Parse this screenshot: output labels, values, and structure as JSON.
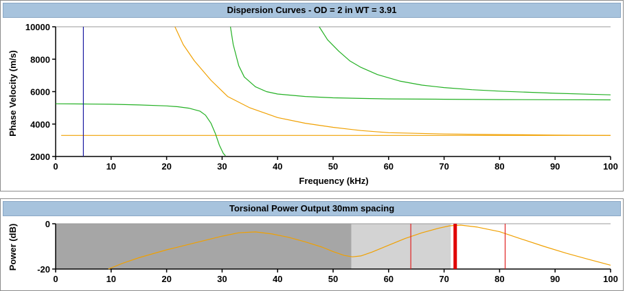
{
  "chart_data": [
    {
      "type": "line",
      "title": "Dispersion Curves - OD = 2 in WT = 3.91",
      "xlabel": "Frequency (kHz)",
      "ylabel": "Phase Velocity (m/s)",
      "xlim": [
        0,
        100
      ],
      "ylim": [
        2000,
        10000
      ],
      "xticks": [
        "0",
        "10",
        "20",
        "30",
        "40",
        "50",
        "60",
        "70",
        "80",
        "90",
        "100"
      ],
      "yticks": [
        "2000",
        "4000",
        "6000",
        "8000",
        "10000"
      ],
      "grid": "top-border-line",
      "colors": {
        "orange": "#f0a000",
        "green": "#22b022",
        "blue": "#1a1aa0"
      },
      "series": [
        {
          "color": "orange",
          "x": [
            1,
            100
          ],
          "y": [
            3300,
            3300
          ]
        },
        {
          "color": "orange",
          "x": [
            21.5,
            23,
            25,
            28,
            31,
            35,
            40,
            45,
            50,
            55,
            60,
            70,
            80,
            90,
            100
          ],
          "y": [
            10000,
            8900,
            7900,
            6700,
            5700,
            5000,
            4400,
            4050,
            3800,
            3600,
            3470,
            3390,
            3350,
            3320,
            3300
          ]
        },
        {
          "color": "green",
          "x": [
            0,
            5,
            10,
            15,
            20,
            22,
            24,
            26,
            27,
            28,
            28.8,
            29.5,
            30.2,
            30.6
          ],
          "y": [
            5250,
            5240,
            5220,
            5180,
            5120,
            5070,
            4980,
            4800,
            4550,
            4050,
            3400,
            2700,
            2200,
            2050
          ]
        },
        {
          "color": "green",
          "x": [
            31.5,
            32,
            33,
            34,
            36,
            38,
            40,
            45,
            50,
            55,
            60,
            70,
            80,
            90,
            100
          ],
          "y": [
            10000,
            8900,
            7600,
            6900,
            6300,
            6000,
            5850,
            5700,
            5620,
            5580,
            5550,
            5530,
            5510,
            5500,
            5490
          ]
        },
        {
          "color": "green",
          "x": [
            47.5,
            49,
            51,
            53,
            55,
            58,
            62,
            66,
            70,
            75,
            80,
            90,
            100
          ],
          "y": [
            10000,
            9200,
            8500,
            7900,
            7500,
            7050,
            6650,
            6400,
            6250,
            6120,
            6030,
            5900,
            5800
          ]
        },
        {
          "color": "blue",
          "x": [
            5,
            5
          ],
          "y": [
            2000,
            10000
          ]
        }
      ]
    },
    {
      "type": "line",
      "title": "Torsional Power Output   30mm spacing",
      "xlabel": "",
      "ylabel": "Power (dB)",
      "xlim": [
        0,
        100
      ],
      "ylim": [
        -20,
        0
      ],
      "xticks": [
        "0",
        "10",
        "20",
        "30",
        "40",
        "50",
        "60",
        "70",
        "80",
        "90",
        "100"
      ],
      "yticks": [
        "0",
        "-20"
      ],
      "regions": [
        {
          "from": 0,
          "to": 53.3,
          "color": "#a6a6a6"
        },
        {
          "from": 53.3,
          "to": 71.2,
          "color": "#d3d3d3"
        }
      ],
      "markers": [
        {
          "x": 64,
          "color": "#e02020",
          "width": "thin"
        },
        {
          "x": 72,
          "color": "#e00000",
          "width": "thick"
        },
        {
          "x": 81,
          "color": "#e02020",
          "width": "thin"
        }
      ],
      "series": [
        {
          "color": "orange",
          "x": [
            9.5,
            12,
            15,
            20,
            25,
            30,
            33,
            36,
            39,
            42,
            45,
            48,
            50,
            52,
            53.5,
            55,
            57,
            60,
            63,
            66,
            69,
            71,
            73,
            76,
            80,
            84,
            88,
            92,
            96,
            100
          ],
          "y": [
            -20,
            -17.5,
            -15,
            -11.5,
            -8.5,
            -5.5,
            -4,
            -3.6,
            -4.5,
            -6,
            -8,
            -10.3,
            -12.3,
            -14,
            -14.6,
            -14.2,
            -12.5,
            -9.5,
            -6.5,
            -4,
            -2,
            -0.9,
            -0.6,
            -1.5,
            -3.5,
            -6.8,
            -10,
            -13,
            -15.7,
            -18.3
          ]
        }
      ]
    }
  ]
}
